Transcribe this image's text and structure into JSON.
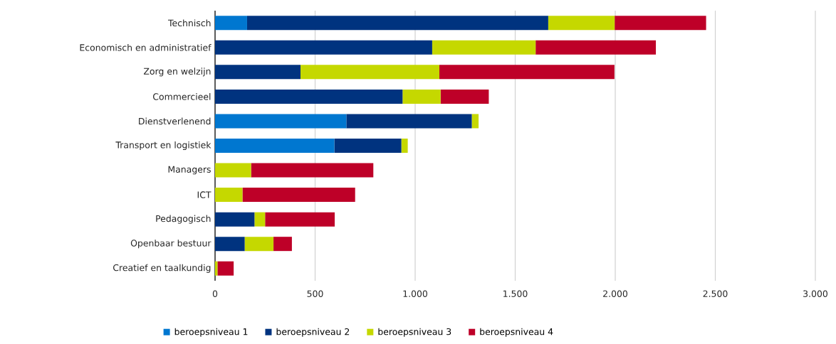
{
  "chart_data": {
    "type": "bar",
    "orientation": "horizontal",
    "stacked": true,
    "categories": [
      "Technisch",
      "Economisch en administratief",
      "Zorg en welzijn",
      "Commercieel",
      "Dienstverlenend",
      "Transport en logistiek",
      "Managers",
      "ICT",
      "Pedagogisch",
      "Openbaar bestuur",
      "Creatief en taalkundig"
    ],
    "series": [
      {
        "name": "beroepsniveau 1",
        "color": "#0077d0",
        "values": [
          160,
          0,
          0,
          0,
          656,
          596,
          0,
          0,
          0,
          0,
          0
        ]
      },
      {
        "name": "beroepsniveau 2",
        "color": "#00337f",
        "values": [
          1505,
          1085,
          427,
          937,
          627,
          335,
          0,
          0,
          197,
          148,
          0
        ]
      },
      {
        "name": "beroepsniveau 3",
        "color": "#c5d800",
        "values": [
          332,
          517,
          694,
          190,
          34,
          32,
          180,
          137,
          53,
          144,
          12
        ]
      },
      {
        "name": "beroepsniveau 4",
        "color": "#be0028",
        "values": [
          457,
          601,
          875,
          241,
          0,
          0,
          611,
          563,
          348,
          92,
          81
        ]
      }
    ],
    "xlim": [
      0,
      3000
    ],
    "xticks": [
      0,
      500,
      {
        "value": 1000,
        "label": "1.000"
      },
      {
        "value": 1500,
        "label": "1.500"
      },
      {
        "value": 2000,
        "label": "2.000"
      },
      {
        "value": 2500,
        "label": "2.500"
      },
      {
        "value": 3000,
        "label": "3.000"
      }
    ],
    "grid": "x",
    "legend": "bottom"
  }
}
